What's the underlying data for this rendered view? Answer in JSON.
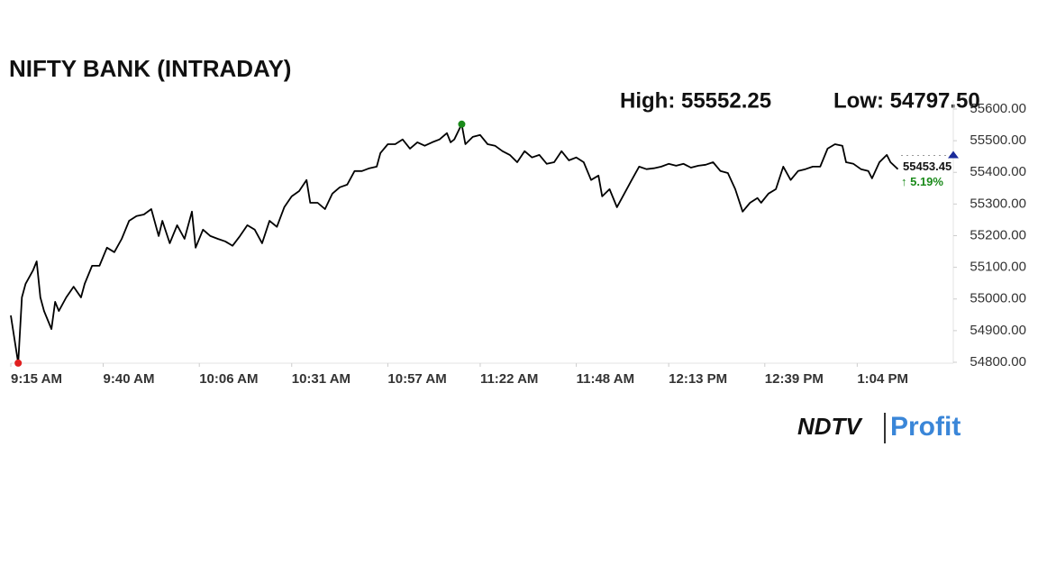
{
  "chart_data": {
    "type": "line",
    "title": "NIFTY BANK (INTRADAY)",
    "annotations": [
      "High: 55552.25",
      "Low: 54797.50"
    ],
    "x": [
      555,
      557,
      558,
      559,
      561,
      562,
      563,
      564,
      566,
      567,
      568,
      570,
      572,
      574,
      575,
      577,
      579,
      581,
      583,
      585,
      587,
      589,
      591,
      593,
      595,
      596,
      598,
      600,
      602,
      604,
      605,
      607,
      609,
      611,
      613,
      615,
      617,
      619,
      621,
      623,
      625,
      627,
      629,
      631,
      633,
      635,
      636,
      638,
      640,
      642,
      644,
      646,
      648,
      650,
      652,
      654,
      655,
      657,
      659,
      661,
      663,
      665,
      667,
      669,
      671,
      673,
      674,
      675,
      677,
      678,
      680,
      682,
      684,
      686,
      688,
      690,
      692,
      694,
      696,
      698,
      700,
      702,
      704,
      706,
      708,
      710,
      712,
      714,
      715,
      717,
      719,
      721,
      723,
      725,
      727,
      729,
      731,
      733,
      735,
      737,
      739,
      741,
      743,
      745,
      747,
      749,
      751,
      753,
      755,
      757,
      758,
      760,
      762,
      764,
      766,
      768,
      770,
      772,
      774,
      776,
      778,
      780,
      781,
      783,
      785,
      787,
      788,
      790,
      792,
      793,
      795
    ],
    "series": [
      {
        "name": "NIFTY BANK",
        "color": "#000000",
        "values": [
          54948,
          54797.5,
          55005,
          55048,
          55090,
          55119,
          55005,
          54962,
          54905,
          54991,
          54962,
          55005,
          55039,
          55005,
          55048,
          55105,
          55105,
          55162,
          55148,
          55190,
          55247,
          55262,
          55267,
          55284,
          55199,
          55247,
          55176,
          55233,
          55190,
          55276,
          55162,
          55219,
          55199,
          55190,
          55182,
          55168,
          55199,
          55233,
          55219,
          55176,
          55247,
          55228,
          55290,
          55324,
          55341,
          55376,
          55304,
          55304,
          55284,
          55333,
          55353,
          55361,
          55404,
          55404,
          55413,
          55418,
          55461,
          55489,
          55489,
          55504,
          55475,
          55495,
          55484,
          55495,
          55504,
          55524,
          55495,
          55504,
          55552.25,
          55489,
          55512,
          55518,
          55489,
          55484,
          55467,
          55455,
          55432,
          55467,
          55447,
          55455,
          55427,
          55432,
          55467,
          55438,
          55447,
          55432,
          55376,
          55390,
          55324,
          55347,
          55290,
          55333,
          55376,
          55418,
          55410,
          55413,
          55418,
          55427,
          55421,
          55427,
          55415,
          55421,
          55424,
          55432,
          55404,
          55398,
          55347,
          55276,
          55304,
          55319,
          55304,
          55333,
          55347,
          55418,
          55376,
          55404,
          55410,
          55418,
          55418,
          55475,
          55489,
          55484,
          55432,
          55427,
          55410,
          55404,
          55381,
          55432,
          55455,
          55432,
          55410
        ]
      }
    ],
    "last_price": {
      "value": 55453.45,
      "label": "55453.45"
    },
    "change_label": "↑ 5.19%",
    "xlim": [
      555,
      810
    ],
    "xticks": [
      {
        "value": 555,
        "label": "9:15 AM"
      },
      {
        "value": 580,
        "label": "9:40 AM"
      },
      {
        "value": 606,
        "label": "10:06 AM"
      },
      {
        "value": 631,
        "label": "10:31 AM"
      },
      {
        "value": 657,
        "label": "10:57 AM"
      },
      {
        "value": 682,
        "label": "11:22 AM"
      },
      {
        "value": 708,
        "label": "11:48 AM"
      },
      {
        "value": 733,
        "label": "12:13 PM"
      },
      {
        "value": 759,
        "label": "12:39 PM"
      },
      {
        "value": 784,
        "label": "1:04 PM"
      }
    ],
    "ylim": [
      54800,
      55600
    ],
    "yticks": [
      {
        "value": 54800,
        "label": "54800.00"
      },
      {
        "value": 54900,
        "label": "54900.00"
      },
      {
        "value": 55000,
        "label": "55000.00"
      },
      {
        "value": 55100,
        "label": "55100.00"
      },
      {
        "value": 55200,
        "label": "55200.00"
      },
      {
        "value": 55300,
        "label": "55300.00"
      },
      {
        "value": 55400,
        "label": "55400.00"
      },
      {
        "value": 55500,
        "label": "55500.00"
      },
      {
        "value": 55600,
        "label": "55600.00"
      }
    ]
  },
  "logo": {
    "brand": "NDTV",
    "product": "Profit"
  }
}
